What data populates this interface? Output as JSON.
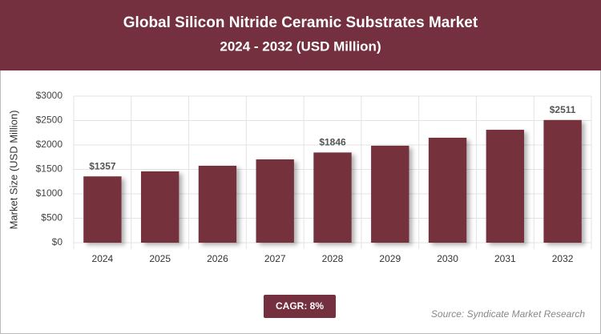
{
  "chart_data": {
    "type": "bar",
    "title": "Global Silicon Nitride Ceramic Substrates Market",
    "subtitle": "2024 - 2032 (USD Million)",
    "y_label": "Market Size (USD Million)",
    "categories": [
      "2024",
      "2025",
      "2026",
      "2027",
      "2028",
      "2029",
      "2030",
      "2031",
      "2032"
    ],
    "values": [
      1357,
      1460,
      1575,
      1705,
      1846,
      1985,
      2148,
      2311,
      2511
    ],
    "value_labels": [
      "$1357",
      null,
      null,
      null,
      "$1846",
      null,
      null,
      null,
      "$2511"
    ],
    "color": "#74303e",
    "ylim": [
      0,
      3000
    ],
    "yticks": [
      {
        "value": 0,
        "label": "$0"
      },
      {
        "value": 500,
        "label": "$500"
      },
      {
        "value": 1000,
        "label": "$1000"
      },
      {
        "value": 1500,
        "label": "$1500"
      },
      {
        "value": 2000,
        "label": "$2000"
      },
      {
        "value": 2500,
        "label": "$2500"
      },
      {
        "value": 3000,
        "label": "$3000"
      }
    ],
    "grid": true,
    "annotation": "CAGR: 8%",
    "source": "Source: Syndicate Market Research"
  }
}
